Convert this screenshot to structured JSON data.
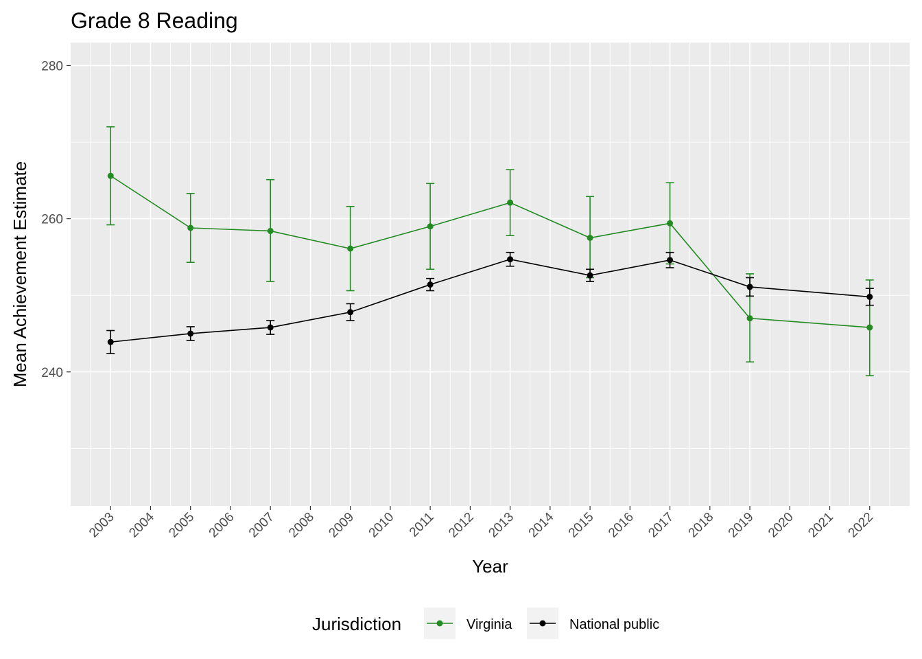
{
  "chart_data": {
    "type": "line",
    "title": "Grade 8 Reading",
    "xlabel": "Year",
    "ylabel": "Mean Achievement Estimate",
    "x_ticks": [
      "2003",
      "2004",
      "2005",
      "2006",
      "2007",
      "2008",
      "2009",
      "2010",
      "2011",
      "2012",
      "2013",
      "2014",
      "2015",
      "2016",
      "2017",
      "2018",
      "2019",
      "2020",
      "2021",
      "2022"
    ],
    "y_ticks": [
      "240",
      "260",
      "280"
    ],
    "xlim": [
      2002,
      2023
    ],
    "ylim": [
      222.5,
      283
    ],
    "grid": true,
    "legend": {
      "title": "Jurisdiction",
      "position": "bottom"
    },
    "error_bars": true,
    "series": [
      {
        "name": "Virginia",
        "color": "#228b22",
        "x": [
          2003,
          2005,
          2007,
          2009,
          2011,
          2013,
          2015,
          2017,
          2019,
          2022
        ],
        "y": [
          265.6,
          258.8,
          258.4,
          256.1,
          259.0,
          262.1,
          257.5,
          259.4,
          247.0,
          245.8
        ],
        "lower": [
          259.2,
          254.3,
          251.8,
          250.6,
          253.4,
          257.8,
          252.3,
          254.1,
          241.3,
          239.5
        ],
        "upper": [
          272.0,
          263.3,
          265.1,
          261.6,
          264.6,
          266.4,
          262.9,
          264.7,
          252.8,
          252.0
        ]
      },
      {
        "name": "National public",
        "color": "#000000",
        "x": [
          2003,
          2005,
          2007,
          2009,
          2011,
          2013,
          2015,
          2017,
          2019,
          2022
        ],
        "y": [
          243.9,
          245.0,
          245.8,
          247.8,
          251.4,
          254.7,
          252.6,
          254.6,
          251.1,
          249.8
        ],
        "lower": [
          242.4,
          244.1,
          244.9,
          246.7,
          250.6,
          253.8,
          251.8,
          253.6,
          249.9,
          248.7
        ],
        "upper": [
          245.4,
          245.9,
          246.7,
          248.9,
          252.2,
          255.6,
          253.4,
          255.6,
          252.3,
          250.9
        ]
      }
    ]
  }
}
